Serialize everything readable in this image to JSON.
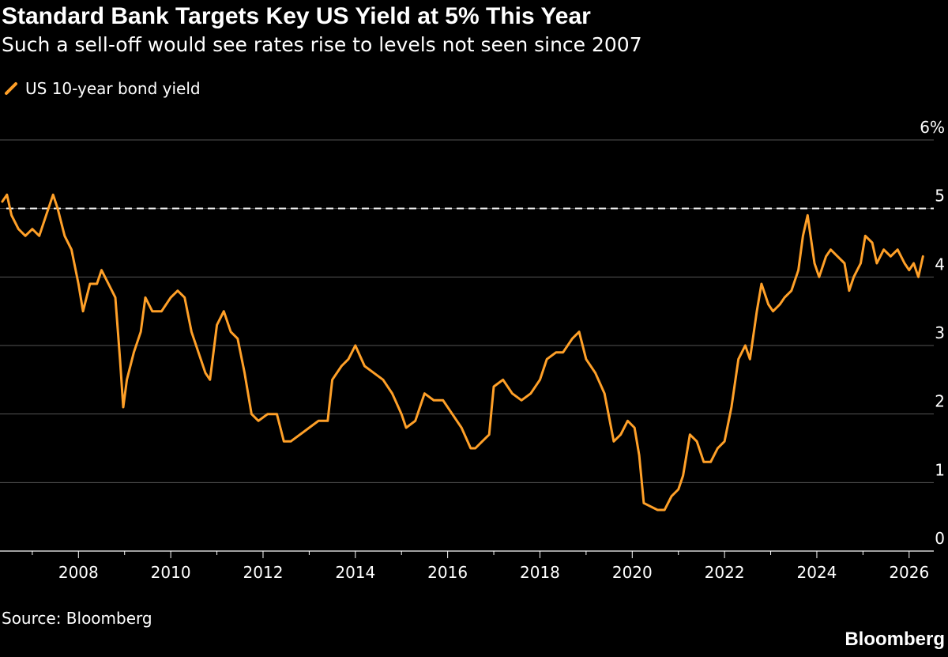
{
  "header": {
    "title": "Standard Bank Targets Key US Yield at 5% This Year",
    "subtitle": "Such a sell-off would see rates rise to levels not seen since 2007"
  },
  "footer": {
    "source": "Source: Bloomberg",
    "brand": "Bloomberg"
  },
  "colors": {
    "background": "#000000",
    "series": "#FFA028",
    "grid": "#555555",
    "reference_line": "#FFFFFF"
  },
  "chart_data": {
    "type": "line",
    "title": "Standard Bank Targets Key US Yield at 5% This Year",
    "subtitle": "Such a sell-off would see rates rise to levels not seen since 2007",
    "xlabel": "",
    "ylabel": "",
    "xlim": [
      2006.3,
      2026.5
    ],
    "ylim": [
      0,
      6
    ],
    "y_ticks": [
      0,
      1,
      2,
      3,
      4,
      5,
      6
    ],
    "y_tick_labels": [
      "0",
      "1",
      "2",
      "3",
      "4",
      "5",
      "6%"
    ],
    "x_ticks": [
      2008,
      2010,
      2012,
      2014,
      2016,
      2018,
      2020,
      2022,
      2024,
      2026
    ],
    "x_tick_labels": [
      "2008",
      "2010",
      "2012",
      "2014",
      "2016",
      "2018",
      "2020",
      "2022",
      "2024",
      "2026"
    ],
    "grid": true,
    "y_axis_side": "right",
    "legend_position": "top-left",
    "reference_lines": [
      {
        "y": 5,
        "style": "dashed"
      }
    ],
    "series": [
      {
        "name": "US 10-year bond yield",
        "x": [
          2006.35,
          2006.45,
          2006.55,
          2006.7,
          2006.85,
          2007.0,
          2007.15,
          2007.3,
          2007.45,
          2007.55,
          2007.7,
          2007.85,
          2008.0,
          2008.1,
          2008.25,
          2008.4,
          2008.5,
          2008.65,
          2008.8,
          2008.9,
          2008.97,
          2009.05,
          2009.2,
          2009.35,
          2009.45,
          2009.6,
          2009.8,
          2010.0,
          2010.15,
          2010.3,
          2010.45,
          2010.6,
          2010.75,
          2010.85,
          2011.0,
          2011.15,
          2011.3,
          2011.45,
          2011.6,
          2011.75,
          2011.9,
          2012.1,
          2012.3,
          2012.45,
          2012.6,
          2012.8,
          2013.0,
          2013.2,
          2013.4,
          2013.5,
          2013.7,
          2013.85,
          2014.0,
          2014.2,
          2014.4,
          2014.6,
          2014.8,
          2015.0,
          2015.1,
          2015.3,
          2015.5,
          2015.7,
          2015.9,
          2016.1,
          2016.3,
          2016.5,
          2016.6,
          2016.75,
          2016.9,
          2017.0,
          2017.2,
          2017.4,
          2017.6,
          2017.8,
          2018.0,
          2018.15,
          2018.35,
          2018.5,
          2018.7,
          2018.85,
          2019.0,
          2019.2,
          2019.4,
          2019.6,
          2019.75,
          2019.9,
          2020.05,
          2020.15,
          2020.25,
          2020.4,
          2020.55,
          2020.7,
          2020.85,
          2021.0,
          2021.1,
          2021.25,
          2021.4,
          2021.55,
          2021.7,
          2021.85,
          2022.0,
          2022.15,
          2022.3,
          2022.45,
          2022.55,
          2022.7,
          2022.8,
          2022.95,
          2023.05,
          2023.2,
          2023.3,
          2023.45,
          2023.6,
          2023.7,
          2023.8,
          2023.95,
          2024.05,
          2024.2,
          2024.3,
          2024.45,
          2024.6,
          2024.7,
          2024.8,
          2024.95,
          2025.05,
          2025.2,
          2025.3,
          2025.45,
          2025.6,
          2025.75,
          2025.9,
          2026.0,
          2026.1,
          2026.2,
          2026.3
        ],
        "y": [
          5.1,
          5.2,
          4.9,
          4.7,
          4.6,
          4.7,
          4.6,
          4.9,
          5.2,
          5.0,
          4.6,
          4.4,
          3.9,
          3.5,
          3.9,
          3.9,
          4.1,
          3.9,
          3.7,
          2.8,
          2.1,
          2.5,
          2.9,
          3.2,
          3.7,
          3.5,
          3.5,
          3.7,
          3.8,
          3.7,
          3.2,
          2.9,
          2.6,
          2.5,
          3.3,
          3.5,
          3.2,
          3.1,
          2.6,
          2.0,
          1.9,
          2.0,
          2.0,
          1.6,
          1.6,
          1.7,
          1.8,
          1.9,
          1.9,
          2.5,
          2.7,
          2.8,
          3.0,
          2.7,
          2.6,
          2.5,
          2.3,
          2.0,
          1.8,
          1.9,
          2.3,
          2.2,
          2.2,
          2.0,
          1.8,
          1.5,
          1.5,
          1.6,
          1.7,
          2.4,
          2.5,
          2.3,
          2.2,
          2.3,
          2.5,
          2.8,
          2.9,
          2.9,
          3.1,
          3.2,
          2.8,
          2.6,
          2.3,
          1.6,
          1.7,
          1.9,
          1.8,
          1.4,
          0.7,
          0.65,
          0.6,
          0.6,
          0.8,
          0.9,
          1.1,
          1.7,
          1.6,
          1.3,
          1.3,
          1.5,
          1.6,
          2.1,
          2.8,
          3.0,
          2.8,
          3.5,
          3.9,
          3.6,
          3.5,
          3.6,
          3.7,
          3.8,
          4.1,
          4.6,
          4.9,
          4.2,
          4.0,
          4.3,
          4.4,
          4.3,
          4.2,
          3.8,
          4.0,
          4.2,
          4.6,
          4.5,
          4.2,
          4.4,
          4.3,
          4.4,
          4.2,
          4.1,
          4.2,
          4.0,
          4.3
        ]
      }
    ]
  }
}
